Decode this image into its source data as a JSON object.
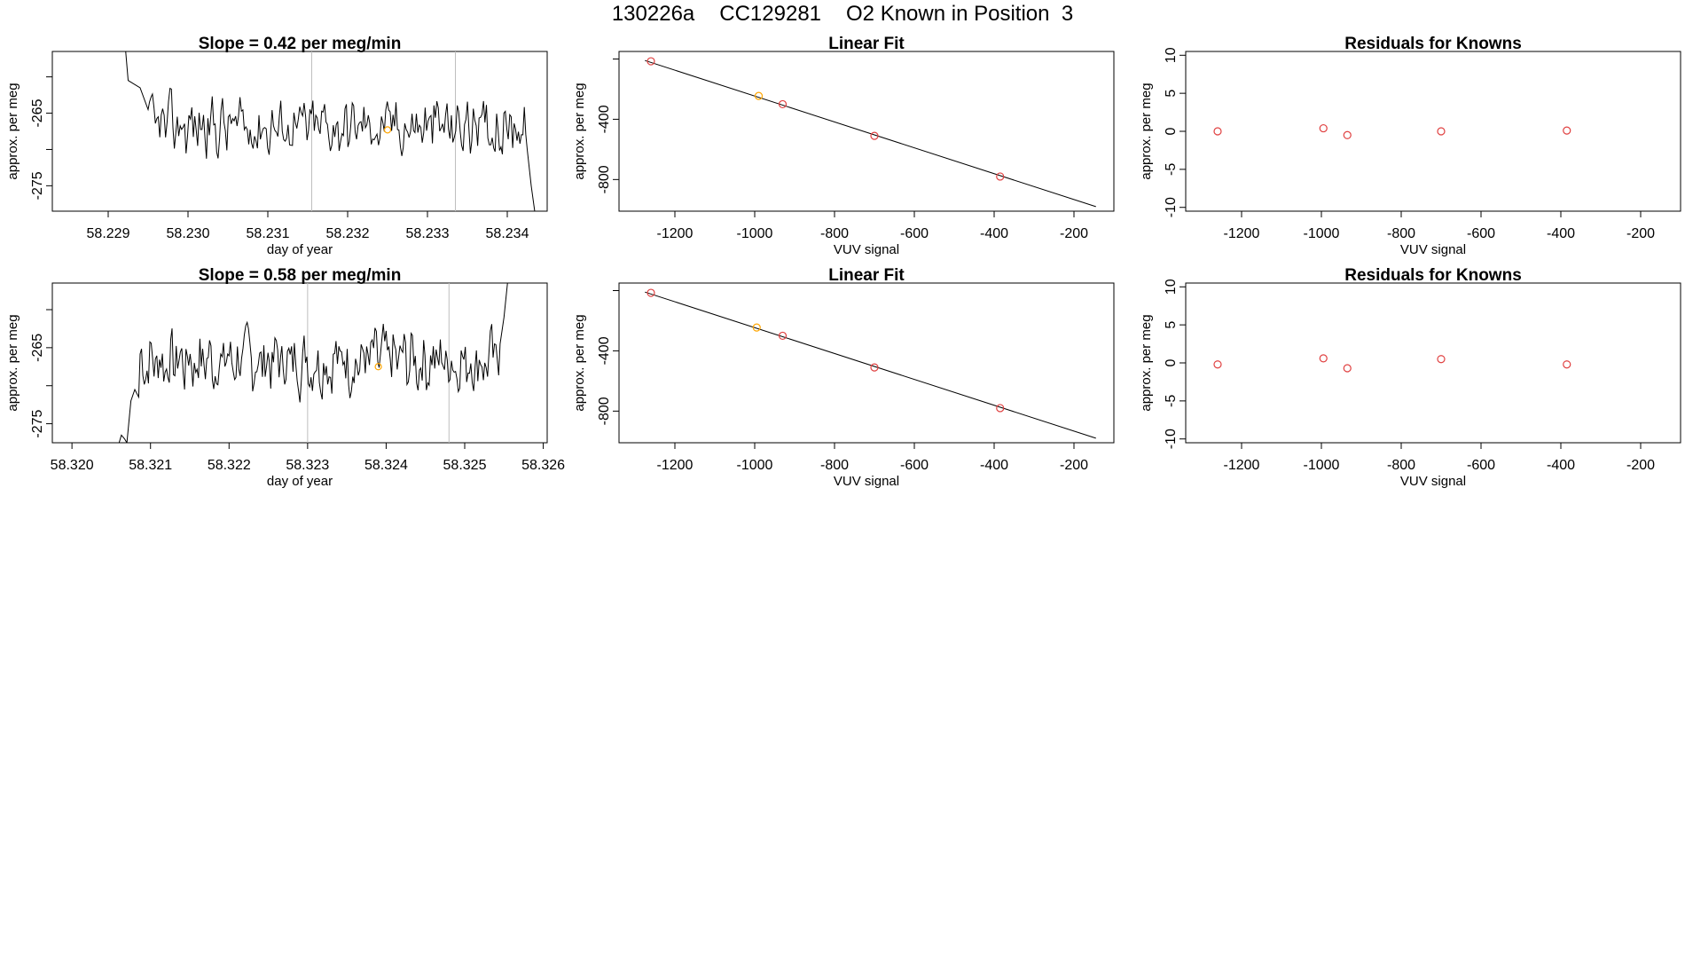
{
  "main_title": {
    "run_id": "130226a",
    "cylinder": "CC129281",
    "description": "O2 Known in Position  3"
  },
  "colors": {
    "line": "#000000",
    "known_point": "#e04040",
    "highlight_point": "#ffa500",
    "guide_line": "#bebebe"
  },
  "chart_data": [
    {
      "id": "timeseries-1",
      "type": "line",
      "title": "Slope =  0.42  per meg/min",
      "xlabel": "day of year",
      "ylabel": "approx. per meg",
      "xlim": [
        58.2283,
        58.2345
      ],
      "ylim": [
        -278.5,
        -256.5
      ],
      "xticks": [
        "58.229",
        "58.230",
        "58.231",
        "58.232",
        "58.233",
        "58.234"
      ],
      "yticks": [
        "-265",
        "-275"
      ],
      "ytick_values": [
        -265,
        -275
      ],
      "extra_yticks": [
        -260,
        -270
      ],
      "vlines": [
        58.23155,
        58.23335
      ],
      "highlight_point": [
        58.2325,
        -267.3
      ],
      "series": {
        "x_start": 58.2291,
        "x_end": 58.2343,
        "lead_in": [
          [
            58.2291,
            -250
          ],
          [
            58.2292,
            -254
          ],
          [
            58.22925,
            -260.5
          ],
          [
            58.2294,
            -261.5
          ],
          [
            58.2295,
            -264.5
          ]
        ],
        "tail": [
          [
            58.23425,
            -270
          ],
          [
            58.2343,
            -275
          ],
          [
            58.23435,
            -279
          ]
        ],
        "mean": -266.8,
        "amplitude": 3.2,
        "seed": 42
      }
    },
    {
      "id": "linearfit-1",
      "type": "scatter",
      "title": "Linear Fit",
      "xlabel": "VUV signal",
      "ylabel": "approx. per meg",
      "xlim": [
        -1340,
        -100
      ],
      "ylim": [
        -1010,
        50
      ],
      "xticks": [
        "-1200",
        "-1000",
        "-800",
        "-600",
        "-400",
        "-200"
      ],
      "xtick_values": [
        -1200,
        -1000,
        -800,
        -600,
        -400,
        -200
      ],
      "yticks": [
        "-400",
        "-800"
      ],
      "ytick_values": [
        -400,
        -800
      ],
      "extra_yticks": [
        0
      ],
      "fit_line": [
        [
          -1275,
          -10
        ],
        [
          -145,
          -980
        ]
      ],
      "points": [
        {
          "x": -1260,
          "y": -15,
          "highlight": false
        },
        {
          "x": -990,
          "y": -245,
          "highlight": true
        },
        {
          "x": -930,
          "y": -300,
          "highlight": false
        },
        {
          "x": -700,
          "y": -510,
          "highlight": false
        },
        {
          "x": -385,
          "y": -780,
          "highlight": false
        }
      ]
    },
    {
      "id": "residuals-1",
      "type": "scatter",
      "title": "Residuals for Knowns",
      "xlabel": "VUV signal",
      "ylabel": "approx. per meg",
      "xlim": [
        -1340,
        -100
      ],
      "ylim": [
        -10.5,
        10.5
      ],
      "xticks": [
        "-1200",
        "-1000",
        "-800",
        "-600",
        "-400",
        "-200"
      ],
      "xtick_values": [
        -1200,
        -1000,
        -800,
        -600,
        -400,
        -200
      ],
      "yticks": [
        "10",
        "5",
        "0",
        "-5",
        "-10"
      ],
      "ytick_values": [
        10,
        5,
        0,
        -5,
        -10
      ],
      "points": [
        {
          "x": -1260,
          "y": 0.0
        },
        {
          "x": -995,
          "y": 0.4
        },
        {
          "x": -935,
          "y": -0.5
        },
        {
          "x": -700,
          "y": 0.0
        },
        {
          "x": -385,
          "y": 0.1
        }
      ]
    },
    {
      "id": "timeseries-2",
      "type": "line",
      "title": "Slope =  0.58  per meg/min",
      "xlabel": "day of year",
      "ylabel": "approx. per meg",
      "xlim": [
        58.31975,
        58.32605
      ],
      "ylim": [
        -277.5,
        -256.5
      ],
      "xticks": [
        "58.320",
        "58.321",
        "58.322",
        "58.323",
        "58.324",
        "58.325",
        "58.326"
      ],
      "yticks": [
        "-265",
        "-275"
      ],
      "ytick_values": [
        -265,
        -275
      ],
      "extra_yticks": [
        -260,
        -270
      ],
      "vlines": [
        58.323,
        58.3248
      ],
      "highlight_point": [
        58.3239,
        -267.5
      ],
      "series": {
        "x_start": 58.3209,
        "x_end": 58.3254,
        "lead_in": [
          [
            58.3206,
            -277.5
          ],
          [
            58.32063,
            -276.5
          ],
          [
            58.32067,
            -277
          ],
          [
            58.3207,
            -277.5
          ],
          [
            58.32075,
            -272
          ],
          [
            58.3208,
            -270.5
          ],
          [
            58.32085,
            -271.5
          ]
        ],
        "tail": [
          [
            58.32545,
            -264.5
          ],
          [
            58.3255,
            -261
          ],
          [
            58.32555,
            -256
          ]
        ],
        "mean": -266.7,
        "amplitude": 3.4,
        "seed": 7
      }
    },
    {
      "id": "linearfit-2",
      "type": "scatter",
      "title": "Linear Fit",
      "xlabel": "VUV signal",
      "ylabel": "approx. per meg",
      "xlim": [
        -1340,
        -100
      ],
      "ylim": [
        -1010,
        50
      ],
      "xticks": [
        "-1200",
        "-1000",
        "-800",
        "-600",
        "-400",
        "-200"
      ],
      "xtick_values": [
        -1200,
        -1000,
        -800,
        -600,
        -400,
        -200
      ],
      "yticks": [
        "-400",
        "-800"
      ],
      "ytick_values": [
        -400,
        -800
      ],
      "extra_yticks": [
        0
      ],
      "fit_line": [
        [
          -1275,
          -10
        ],
        [
          -145,
          -980
        ]
      ],
      "points": [
        {
          "x": -1260,
          "y": -15,
          "highlight": false
        },
        {
          "x": -995,
          "y": -245,
          "highlight": true
        },
        {
          "x": -930,
          "y": -300,
          "highlight": false
        },
        {
          "x": -700,
          "y": -510,
          "highlight": false
        },
        {
          "x": -385,
          "y": -780,
          "highlight": false
        }
      ]
    },
    {
      "id": "residuals-2",
      "type": "scatter",
      "title": "Residuals for Knowns",
      "xlabel": "VUV signal",
      "ylabel": "approx. per meg",
      "xlim": [
        -1340,
        -100
      ],
      "ylim": [
        -10.5,
        10.5
      ],
      "xticks": [
        "-1200",
        "-1000",
        "-800",
        "-600",
        "-400",
        "-200"
      ],
      "xtick_values": [
        -1200,
        -1000,
        -800,
        -600,
        -400,
        -200
      ],
      "yticks": [
        "10",
        "5",
        "0",
        "-5",
        "-10"
      ],
      "ytick_values": [
        10,
        5,
        0,
        -5,
        -10
      ],
      "points": [
        {
          "x": -1260,
          "y": -0.2
        },
        {
          "x": -995,
          "y": 0.6
        },
        {
          "x": -935,
          "y": -0.7
        },
        {
          "x": -700,
          "y": 0.5
        },
        {
          "x": -385,
          "y": -0.2
        }
      ]
    }
  ]
}
